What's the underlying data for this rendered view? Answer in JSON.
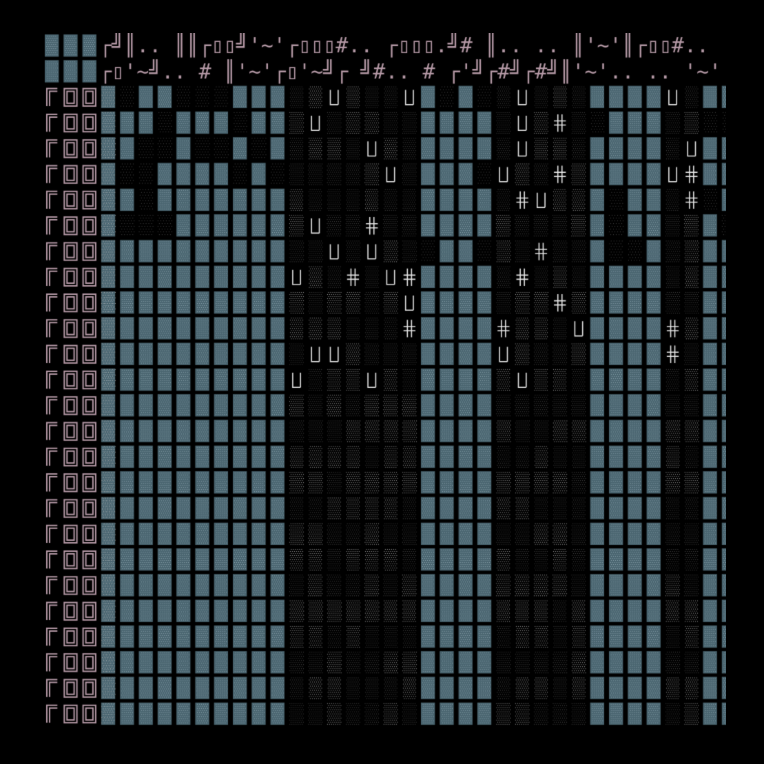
{
  "palette": {
    "background": "#000000",
    "pink": "#b69aa7",
    "pink_light": "#e6d6de",
    "teal": "#4a6570",
    "teal_dot": "#90a8b2",
    "shade": "#262626",
    "dither_light": "#a9a9a9",
    "dither_dark": "#4d4d4d",
    "glyph_white": "#e9e9e9"
  },
  "glyph_rows": [
    "┌╝║.. ║║┌▯▯╝'~'┌▯▯▯#.. ┌▯▯▯.╝# ║.. .. ║'~'║┌▯▯#.. '~'#",
    "┌▯'~╝.. # ║'~'┌▯'~╝┌ ╝#.. # ┌'╝┌#╝┌#╝║'~'.. .. '~'┌╝.. '~'┌╝#"
  ],
  "side_glyphs": {
    "row_head": "┌╝║",
    "column_cell": "┌▯▯"
  }
}
